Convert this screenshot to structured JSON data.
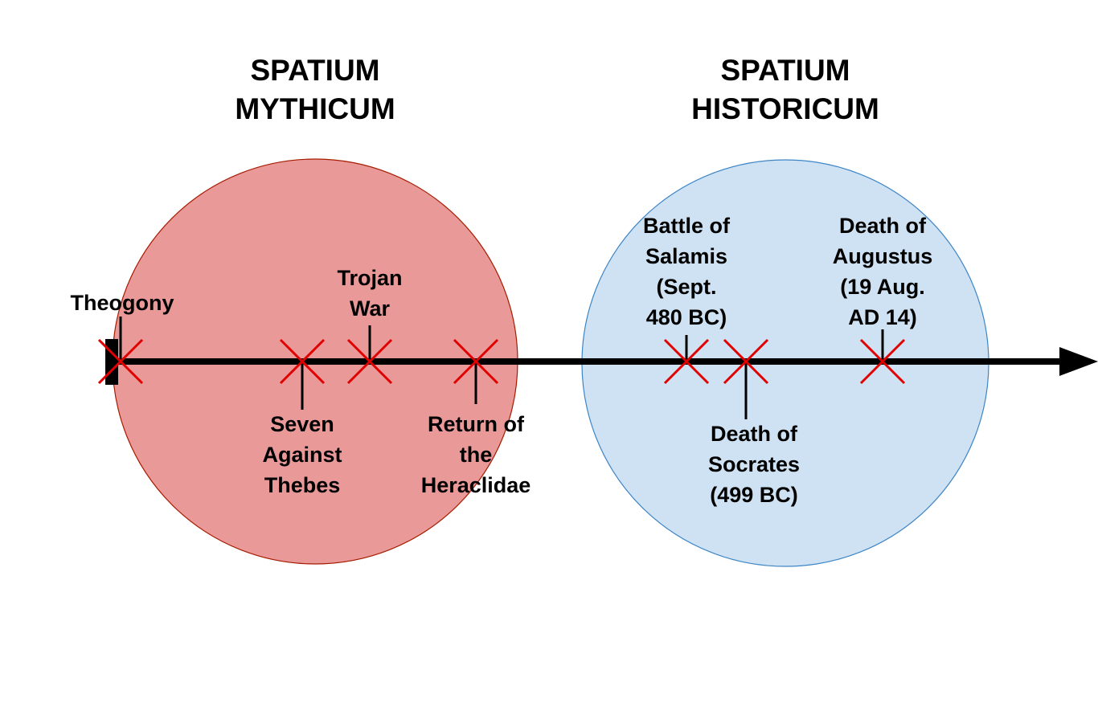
{
  "colors": {
    "mythicum_fill": "#ea9999",
    "mythicum_stroke": "#a61c00",
    "historicum_fill": "#cfe2f3",
    "historicum_stroke": "#3d85c6",
    "axis": "#000000",
    "cross": "#e00000"
  },
  "regions": [
    {
      "id": "mythicum",
      "title_lines": [
        "SPATIUM",
        "MYTHICUM"
      ]
    },
    {
      "id": "historicum",
      "title_lines": [
        "SPATIUM",
        "HISTORICUM"
      ]
    }
  ],
  "events": [
    {
      "id": "theogony",
      "lines": [
        "Theogony"
      ]
    },
    {
      "id": "seven-against-thebes",
      "lines": [
        "Seven",
        "Against",
        "Thebes"
      ]
    },
    {
      "id": "trojan-war",
      "lines": [
        "Trojan",
        "War"
      ]
    },
    {
      "id": "return-heraclidae",
      "lines": [
        "Return of",
        "the",
        "Heraclidae"
      ]
    },
    {
      "id": "battle-salamis",
      "lines": [
        "Battle of",
        "Salamis",
        "(Sept.",
        "480 BC)"
      ]
    },
    {
      "id": "death-socrates",
      "lines": [
        "Death of",
        "Socrates",
        "(499 BC)"
      ]
    },
    {
      "id": "death-augustus",
      "lines": [
        "Death of",
        "Augustus",
        "(19 Aug.",
        "AD 14)"
      ]
    }
  ]
}
